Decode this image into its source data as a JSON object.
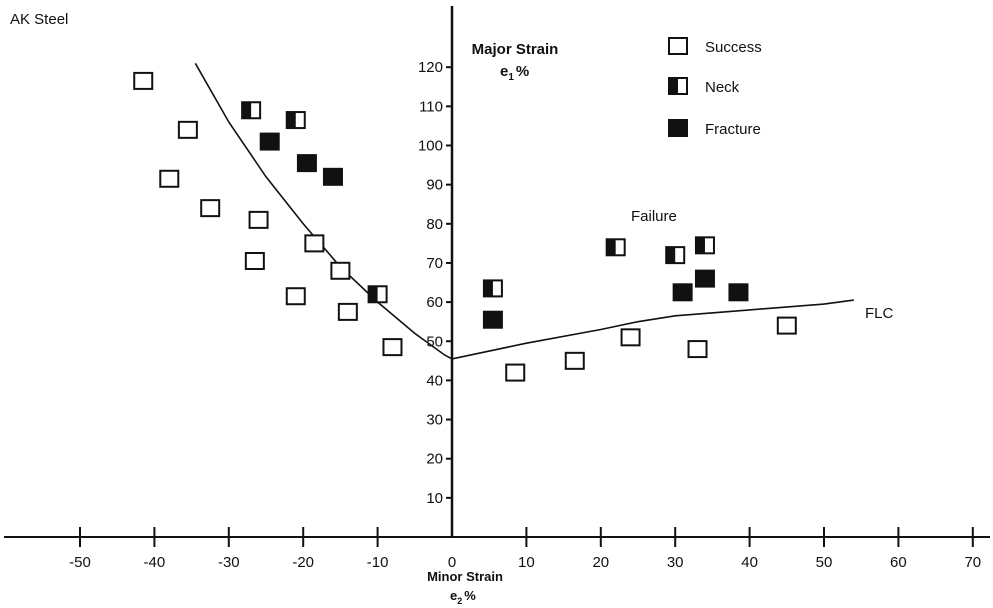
{
  "chart_data": {
    "type": "scatter",
    "title": "AK Steel",
    "xlabel": "Minor Strain",
    "xlabel_unit": "e",
    "xlabel_sub": "2",
    "xlabel_pct": "%",
    "ylabel": "Major Strain",
    "ylabel_unit": "e",
    "ylabel_sub": "1",
    "ylabel_pct": "%",
    "xlim": [
      -50,
      70
    ],
    "ylim": [
      0,
      120
    ],
    "x_ticks": [
      -50,
      -40,
      -30,
      -20,
      -10,
      0,
      10,
      20,
      30,
      40,
      50,
      60,
      70
    ],
    "y_ticks": [
      10,
      20,
      30,
      40,
      50,
      60,
      70,
      80,
      90,
      100,
      110,
      120
    ],
    "grid": false,
    "legend_position": "top-right",
    "legend": [
      {
        "label": "Success",
        "marker": "open-square"
      },
      {
        "label": "Neck",
        "marker": "half-filled-square"
      },
      {
        "label": "Fracture",
        "marker": "filled-square"
      }
    ],
    "annotations": [
      "Failure",
      "FLC"
    ],
    "series": [
      {
        "name": "Success",
        "marker": "open-square",
        "points": [
          [
            -41.5,
            116.5
          ],
          [
            -35.5,
            104
          ],
          [
            -38,
            91.5
          ],
          [
            -32.5,
            84
          ],
          [
            -26,
            81
          ],
          [
            -26.5,
            70.5
          ],
          [
            -21,
            61.5
          ],
          [
            -18.5,
            75
          ],
          [
            -15,
            68
          ],
          [
            -14,
            57.5
          ],
          [
            -8,
            48.5
          ],
          [
            8.5,
            42
          ],
          [
            16.5,
            45
          ],
          [
            24,
            51
          ],
          [
            33,
            48
          ],
          [
            45,
            54
          ]
        ]
      },
      {
        "name": "Neck",
        "marker": "half-filled-square",
        "points": [
          [
            -27,
            109
          ],
          [
            -21,
            106.5
          ],
          [
            -10,
            62
          ],
          [
            5.5,
            63.5
          ],
          [
            22,
            74
          ],
          [
            30,
            72
          ],
          [
            34,
            74.5
          ]
        ]
      },
      {
        "name": "Fracture",
        "marker": "filled-square",
        "points": [
          [
            -24.5,
            101
          ],
          [
            -19.5,
            95.5
          ],
          [
            -16,
            92
          ],
          [
            5.5,
            55.5
          ],
          [
            31,
            62.5
          ],
          [
            34,
            66
          ],
          [
            38.5,
            62.5
          ]
        ]
      }
    ],
    "curves": [
      {
        "name": "FLC",
        "points": [
          [
            -34.5,
            121
          ],
          [
            -30,
            106
          ],
          [
            -25,
            92
          ],
          [
            -20,
            80
          ],
          [
            -15,
            69
          ],
          [
            -10,
            60
          ],
          [
            -5,
            52
          ],
          [
            -1,
            46.5
          ],
          [
            0,
            45.5
          ],
          [
            10,
            49.5
          ],
          [
            20,
            53
          ],
          [
            25,
            55
          ],
          [
            30,
            56.5
          ],
          [
            40,
            58
          ],
          [
            50,
            59.5
          ],
          [
            54,
            60.5
          ]
        ]
      }
    ]
  }
}
